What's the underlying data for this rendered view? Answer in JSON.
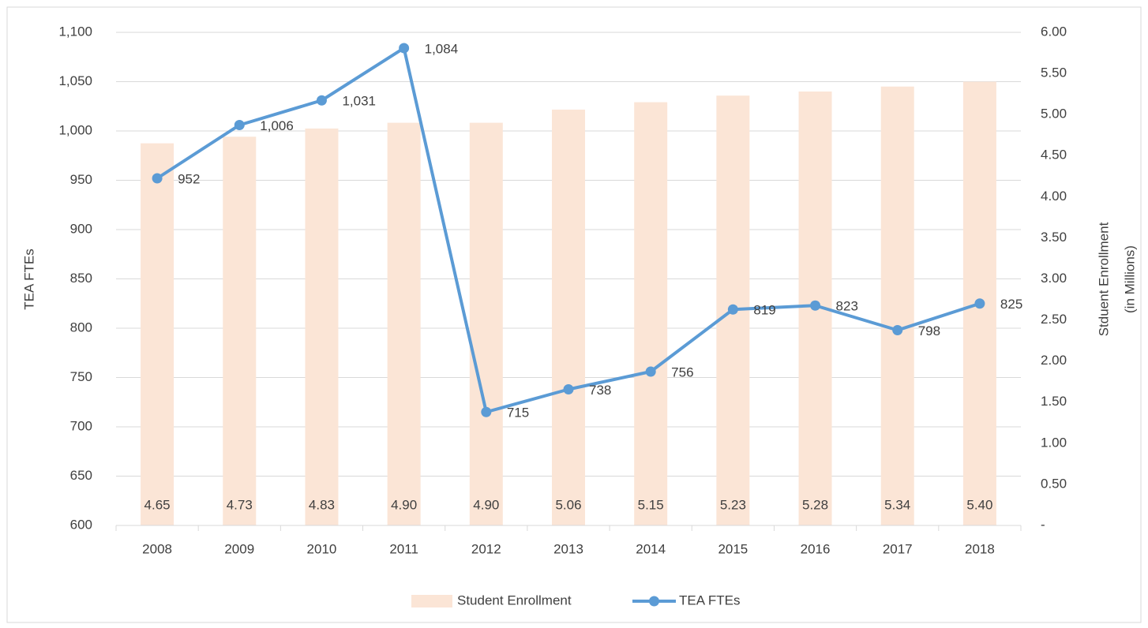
{
  "chart_data": {
    "type": "bar-line",
    "categories": [
      "2008",
      "2009",
      "2010",
      "2011",
      "2012",
      "2013",
      "2014",
      "2015",
      "2016",
      "2017",
      "2018"
    ],
    "ylabel": "TEA FTEs",
    "y2label": [
      "Stduent Enrollment",
      "(in Millions)"
    ],
    "ylim": [
      600,
      1100
    ],
    "yticks": [
      600,
      650,
      700,
      750,
      800,
      850,
      900,
      950,
      {
        "value": 1000,
        "label": "1,000"
      },
      {
        "value": 1050,
        "label": "1,050"
      },
      {
        "value": 1100,
        "label": "1,100"
      }
    ],
    "y2lim": [
      0,
      6
    ],
    "y2ticks": [
      {
        "value": 0,
        "label": "-"
      },
      {
        "value": 0.5,
        "label": "0.50"
      },
      {
        "value": 1,
        "label": "1.00"
      },
      {
        "value": 1.5,
        "label": "1.50"
      },
      {
        "value": 2,
        "label": "2.00"
      },
      {
        "value": 2.5,
        "label": "2.50"
      },
      {
        "value": 3,
        "label": "3.00"
      },
      {
        "value": 3.5,
        "label": "3.50"
      },
      {
        "value": 4,
        "label": "4.00"
      },
      {
        "value": 4.5,
        "label": "4.50"
      },
      {
        "value": 5,
        "label": "5.00"
      },
      {
        "value": 5.5,
        "label": "5.50"
      },
      {
        "value": 6,
        "label": "6.00"
      }
    ],
    "grid": true,
    "legend": "bottom",
    "series": [
      {
        "name": "Student Enrollment",
        "type": "bar",
        "axis": "y2",
        "color": "#fbe5d6",
        "values": [
          4.65,
          4.73,
          4.83,
          4.9,
          4.9,
          5.06,
          5.15,
          5.23,
          5.28,
          5.34,
          5.4
        ],
        "value_labels": [
          "4.65",
          "4.73",
          "4.83",
          "4.90",
          "4.90",
          "5.06",
          "5.15",
          "5.23",
          "5.28",
          "5.34",
          "5.40"
        ]
      },
      {
        "name": "TEA FTEs",
        "type": "line",
        "axis": "y",
        "color": "#5b9bd5",
        "values": [
          952,
          1006,
          1031,
          1084,
          715,
          738,
          756,
          819,
          823,
          798,
          825
        ],
        "value_labels": [
          "952",
          "1,006",
          "1,031",
          "1,084",
          "715",
          "738",
          "756",
          "819",
          "823",
          "798",
          "825"
        ]
      }
    ]
  }
}
